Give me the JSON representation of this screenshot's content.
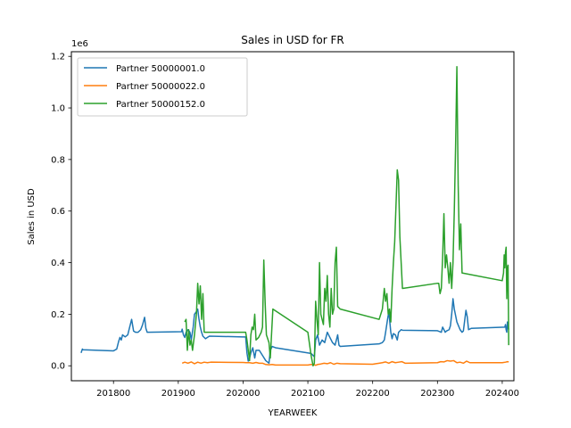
{
  "chart_data": {
    "type": "line",
    "title": "Sales in USD for FR",
    "xlabel": "YEARWEEK",
    "ylabel": "Sales in USD",
    "y_offset_label": "1e6",
    "xlim": [
      201735,
      202418
    ],
    "ylim": [
      -0.058,
      1.218
    ],
    "x_ticks": [
      201800,
      201900,
      202000,
      202100,
      202200,
      202300,
      202400
    ],
    "x_tick_labels": [
      "201800",
      "201900",
      "202000",
      "202100",
      "202200",
      "202300",
      "202400"
    ],
    "y_ticks": [
      0.0,
      0.2,
      0.4,
      0.6,
      0.8,
      1.0,
      1.2
    ],
    "y_tick_labels": [
      "0.0",
      "0.2",
      "0.4",
      "0.6",
      "0.8",
      "1.0",
      "1.2"
    ],
    "grid": false,
    "legend_position": "upper-left",
    "series": [
      {
        "name": "Partner 50000001.0",
        "color": "#1f77b4",
        "points": [
          [
            201750,
            0.05
          ],
          [
            201752,
            0.065
          ],
          [
            201753,
            0.062
          ],
          [
            201800,
            0.058
          ],
          [
            201805,
            0.065
          ],
          [
            201808,
            0.095
          ],
          [
            201810,
            0.11
          ],
          [
            201812,
            0.1
          ],
          [
            201814,
            0.12
          ],
          [
            201818,
            0.112
          ],
          [
            201822,
            0.12
          ],
          [
            201825,
            0.15
          ],
          [
            201828,
            0.18
          ],
          [
            201831,
            0.135
          ],
          [
            201834,
            0.13
          ],
          [
            201838,
            0.13
          ],
          [
            201842,
            0.14
          ],
          [
            201845,
            0.16
          ],
          [
            201848,
            0.188
          ],
          [
            201850,
            0.145
          ],
          [
            201852,
            0.13
          ],
          [
            201905,
            0.132
          ],
          [
            201906,
            0.142
          ],
          [
            201908,
            0.12
          ],
          [
            201910,
            0.11
          ],
          [
            201912,
            0.13
          ],
          [
            201915,
            0.14
          ],
          [
            201918,
            0.13
          ],
          [
            201920,
            0.1
          ],
          [
            201923,
            0.15
          ],
          [
            201925,
            0.2
          ],
          [
            201928,
            0.21
          ],
          [
            201930,
            0.22
          ],
          [
            201932,
            0.18
          ],
          [
            201934,
            0.15
          ],
          [
            201936,
            0.13
          ],
          [
            201938,
            0.115
          ],
          [
            201942,
            0.105
          ],
          [
            201945,
            0.11
          ],
          [
            201948,
            0.115
          ],
          [
            202000,
            0.112
          ],
          [
            202004,
            0.112
          ],
          [
            202006,
            0.05
          ],
          [
            202008,
            0.018
          ],
          [
            202010,
            0.03
          ],
          [
            202012,
            0.05
          ],
          [
            202015,
            0.07
          ],
          [
            202018,
            0.03
          ],
          [
            202020,
            0.06
          ],
          [
            202025,
            0.06
          ],
          [
            202030,
            0.04
          ],
          [
            202035,
            0.02
          ],
          [
            202040,
            0.01
          ],
          [
            202042,
            0.06
          ],
          [
            202045,
            0.075
          ],
          [
            202050,
            0.07
          ],
          [
            202105,
            0.048
          ],
          [
            202110,
            0.035
          ],
          [
            202112,
            0.1
          ],
          [
            202115,
            0.12
          ],
          [
            202118,
            0.08
          ],
          [
            202122,
            0.1
          ],
          [
            202126,
            0.09
          ],
          [
            202130,
            0.13
          ],
          [
            202134,
            0.11
          ],
          [
            202138,
            0.09
          ],
          [
            202142,
            0.08
          ],
          [
            202146,
            0.12
          ],
          [
            202148,
            0.08
          ],
          [
            202150,
            0.075
          ],
          [
            202210,
            0.085
          ],
          [
            202215,
            0.09
          ],
          [
            202218,
            0.1
          ],
          [
            202220,
            0.13
          ],
          [
            202223,
            0.18
          ],
          [
            202225,
            0.21
          ],
          [
            202228,
            0.13
          ],
          [
            202230,
            0.105
          ],
          [
            202232,
            0.125
          ],
          [
            202235,
            0.12
          ],
          [
            202238,
            0.1
          ],
          [
            202240,
            0.13
          ],
          [
            202244,
            0.14
          ],
          [
            202246,
            0.138
          ],
          [
            202300,
            0.136
          ],
          [
            202304,
            0.132
          ],
          [
            202306,
            0.13
          ],
          [
            202308,
            0.15
          ],
          [
            202312,
            0.13
          ],
          [
            202314,
            0.135
          ],
          [
            202318,
            0.14
          ],
          [
            202320,
            0.155
          ],
          [
            202322,
            0.2
          ],
          [
            202324,
            0.26
          ],
          [
            202326,
            0.22
          ],
          [
            202330,
            0.17
          ],
          [
            202335,
            0.14
          ],
          [
            202338,
            0.13
          ],
          [
            202340,
            0.135
          ],
          [
            202342,
            0.175
          ],
          [
            202344,
            0.215
          ],
          [
            202346,
            0.19
          ],
          [
            202348,
            0.14
          ],
          [
            202352,
            0.145
          ],
          [
            202404,
            0.15
          ],
          [
            202405,
            0.16
          ],
          [
            202406,
            0.14
          ],
          [
            202407,
            0.13
          ],
          [
            202408,
            0.17
          ],
          [
            202409,
            0.15
          ],
          [
            202410,
            0.14
          ]
        ]
      },
      {
        "name": "Partner 50000022.0",
        "color": "#ff7f0e",
        "points": [
          [
            201906,
            0.01
          ],
          [
            201910,
            0.014
          ],
          [
            201915,
            0.01
          ],
          [
            201920,
            0.015
          ],
          [
            201925,
            0.008
          ],
          [
            201930,
            0.014
          ],
          [
            201935,
            0.01
          ],
          [
            201940,
            0.014
          ],
          [
            201945,
            0.012
          ],
          [
            201950,
            0.014
          ],
          [
            202000,
            0.013
          ],
          [
            202005,
            0.012
          ],
          [
            202010,
            0.012
          ],
          [
            202015,
            0.01
          ],
          [
            202020,
            0.013
          ],
          [
            202025,
            0.01
          ],
          [
            202030,
            0.01
          ],
          [
            202035,
            0.005
          ],
          [
            202040,
            0.004
          ],
          [
            202045,
            0.005
          ],
          [
            202050,
            0.003
          ],
          [
            202100,
            0.003
          ],
          [
            202105,
            0.005
          ],
          [
            202110,
            0.004
          ],
          [
            202112,
            0.002
          ],
          [
            202115,
            0.005
          ],
          [
            202120,
            0.007
          ],
          [
            202125,
            0.01
          ],
          [
            202130,
            0.008
          ],
          [
            202135,
            0.012
          ],
          [
            202140,
            0.006
          ],
          [
            202145,
            0.01
          ],
          [
            202150,
            0.008
          ],
          [
            202200,
            0.006
          ],
          [
            202205,
            0.008
          ],
          [
            202210,
            0.01
          ],
          [
            202215,
            0.012
          ],
          [
            202220,
            0.015
          ],
          [
            202225,
            0.01
          ],
          [
            202230,
            0.016
          ],
          [
            202235,
            0.012
          ],
          [
            202240,
            0.014
          ],
          [
            202245,
            0.016
          ],
          [
            202250,
            0.01
          ],
          [
            202300,
            0.012
          ],
          [
            202305,
            0.016
          ],
          [
            202310,
            0.015
          ],
          [
            202315,
            0.02
          ],
          [
            202320,
            0.018
          ],
          [
            202325,
            0.02
          ],
          [
            202330,
            0.012
          ],
          [
            202335,
            0.014
          ],
          [
            202340,
            0.01
          ],
          [
            202345,
            0.018
          ],
          [
            202350,
            0.012
          ],
          [
            202400,
            0.012
          ],
          [
            202405,
            0.014
          ],
          [
            202408,
            0.016
          ],
          [
            202410,
            0.015
          ]
        ]
      },
      {
        "name": "Partner 50000152.0",
        "color": "#2ca02c",
        "points": [
          [
            201910,
            0.17
          ],
          [
            201912,
            0.18
          ],
          [
            201914,
            0.06
          ],
          [
            201916,
            0.14
          ],
          [
            201918,
            0.08
          ],
          [
            201920,
            0.1
          ],
          [
            201922,
            0.06
          ],
          [
            201925,
            0.12
          ],
          [
            201928,
            0.2
          ],
          [
            201930,
            0.32
          ],
          [
            201932,
            0.24
          ],
          [
            201934,
            0.31
          ],
          [
            201936,
            0.18
          ],
          [
            201938,
            0.28
          ],
          [
            201940,
            0.13
          ],
          [
            201944,
            0.13
          ],
          [
            201948,
            0.13
          ],
          [
            202000,
            0.13
          ],
          [
            202004,
            0.13
          ],
          [
            202006,
            0.1
          ],
          [
            202008,
            0.06
          ],
          [
            202010,
            0.02
          ],
          [
            202012,
            0.12
          ],
          [
            202014,
            0.15
          ],
          [
            202016,
            0.14
          ],
          [
            202018,
            0.2
          ],
          [
            202020,
            0.1
          ],
          [
            202024,
            0.11
          ],
          [
            202028,
            0.13
          ],
          [
            202030,
            0.15
          ],
          [
            202032,
            0.41
          ],
          [
            202034,
            0.25
          ],
          [
            202036,
            0.12
          ],
          [
            202040,
            0.09
          ],
          [
            202042,
            0.03
          ],
          [
            202046,
            0.22
          ],
          [
            202100,
            0.13
          ],
          [
            202105,
            0.04
          ],
          [
            202108,
            0.0
          ],
          [
            202110,
            0.01
          ],
          [
            202112,
            0.25
          ],
          [
            202114,
            0.18
          ],
          [
            202116,
            0.12
          ],
          [
            202118,
            0.4
          ],
          [
            202120,
            0.2
          ],
          [
            202122,
            0.18
          ],
          [
            202124,
            0.16
          ],
          [
            202126,
            0.3
          ],
          [
            202128,
            0.25
          ],
          [
            202130,
            0.35
          ],
          [
            202132,
            0.2
          ],
          [
            202134,
            0.15
          ],
          [
            202136,
            0.3
          ],
          [
            202138,
            0.2
          ],
          [
            202140,
            0.22
          ],
          [
            202142,
            0.4
          ],
          [
            202144,
            0.46
          ],
          [
            202146,
            0.23
          ],
          [
            202150,
            0.22
          ],
          [
            202210,
            0.18
          ],
          [
            202215,
            0.22
          ],
          [
            202218,
            0.3
          ],
          [
            202220,
            0.25
          ],
          [
            202222,
            0.28
          ],
          [
            202224,
            0.2
          ],
          [
            202226,
            0.22
          ],
          [
            202228,
            0.17
          ],
          [
            202230,
            0.3
          ],
          [
            202232,
            0.4
          ],
          [
            202234,
            0.48
          ],
          [
            202236,
            0.62
          ],
          [
            202238,
            0.76
          ],
          [
            202240,
            0.72
          ],
          [
            202242,
            0.5
          ],
          [
            202244,
            0.4
          ],
          [
            202246,
            0.3
          ],
          [
            202300,
            0.32
          ],
          [
            202302,
            0.32
          ],
          [
            202304,
            0.28
          ],
          [
            202306,
            0.3
          ],
          [
            202308,
            0.42
          ],
          [
            202310,
            0.59
          ],
          [
            202312,
            0.38
          ],
          [
            202314,
            0.43
          ],
          [
            202316,
            0.38
          ],
          [
            202318,
            0.32
          ],
          [
            202320,
            0.4
          ],
          [
            202322,
            0.3
          ],
          [
            202324,
            0.4
          ],
          [
            202326,
            0.6
          ],
          [
            202328,
            0.85
          ],
          [
            202330,
            1.16
          ],
          [
            202332,
            0.7
          ],
          [
            202334,
            0.45
          ],
          [
            202336,
            0.55
          ],
          [
            202338,
            0.36
          ],
          [
            202400,
            0.33
          ],
          [
            202402,
            0.36
          ],
          [
            202403,
            0.43
          ],
          [
            202404,
            0.38
          ],
          [
            202405,
            0.44
          ],
          [
            202406,
            0.46
          ],
          [
            202407,
            0.26
          ],
          [
            202408,
            0.38
          ],
          [
            202409,
            0.39
          ],
          [
            202410,
            0.08
          ]
        ]
      }
    ]
  }
}
